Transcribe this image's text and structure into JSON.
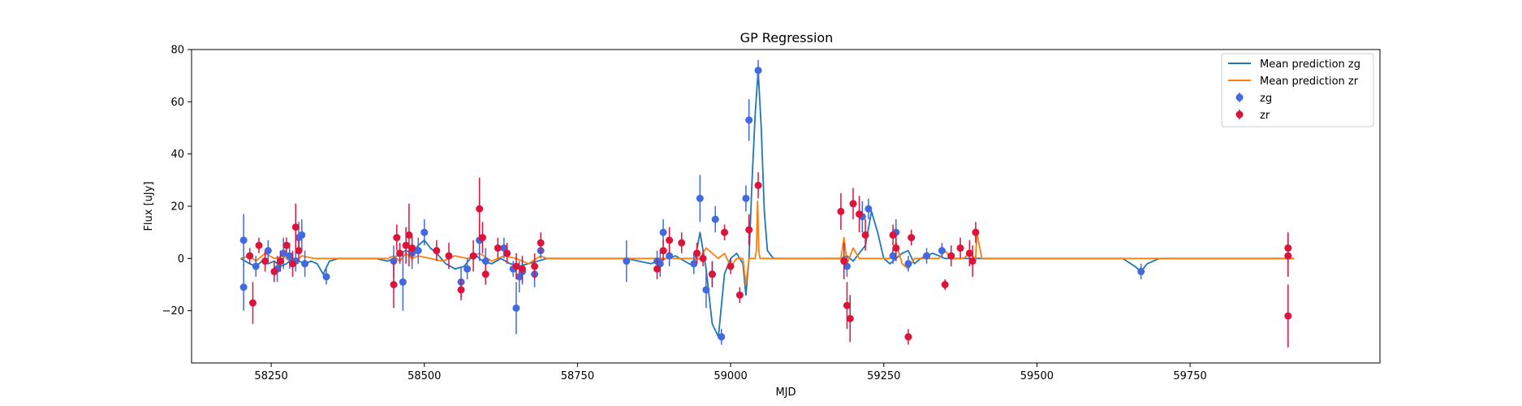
{
  "chart_data": {
    "type": "scatter",
    "title": "GP Regression",
    "xlabel": "MJD",
    "ylabel": "Flux [uJy]",
    "xlim": [
      58120,
      60060
    ],
    "ylim": [
      -40,
      80
    ],
    "xticks": [
      58250,
      58500,
      58750,
      59000,
      59250,
      59500,
      59750
    ],
    "yticks": [
      -20,
      0,
      20,
      40,
      60,
      80
    ],
    "grid": false,
    "legend_position": "top-right",
    "legend": [
      "Mean prediction zg",
      "Mean prediction zr",
      "zg",
      "zr"
    ],
    "colors": {
      "zg_line": "#1f77b4",
      "zr_line": "#ff7f0e",
      "zg_points": "#4169e1",
      "zr_points": "#dc143c"
    },
    "series": [
      {
        "name": "Mean prediction zg",
        "kind": "line",
        "x": [
          58200,
          58215,
          58225,
          58235,
          58245,
          58255,
          58265,
          58275,
          58285,
          58295,
          58305,
          58315,
          58325,
          58335,
          58345,
          58360,
          58380,
          58420,
          58440,
          58450,
          58460,
          58470,
          58480,
          58490,
          58500,
          58510,
          58520,
          58535,
          58550,
          58565,
          58575,
          58585,
          58595,
          58610,
          58625,
          58640,
          58655,
          58670,
          58685,
          58700,
          58720,
          58800,
          58830,
          58850,
          58870,
          58880,
          58895,
          58910,
          58925,
          58940,
          58950,
          58960,
          58970,
          58980,
          58990,
          59000,
          59010,
          59020,
          59025,
          59030,
          59035,
          59040,
          59045,
          59050,
          59055,
          59060,
          59070,
          59080,
          59100,
          59150,
          59180,
          59190,
          59200,
          59210,
          59220,
          59230,
          59240,
          59250,
          59260,
          59270,
          59280,
          59290,
          59300,
          59310,
          59320,
          59330,
          59340,
          59350,
          59360,
          59370,
          59380,
          59400,
          59500,
          59640,
          59660,
          59670,
          59680,
          59700,
          59800,
          59920
        ],
        "y": [
          0,
          -2,
          -3,
          -1,
          -2,
          -1,
          -3,
          -2,
          0,
          -1,
          -2,
          -1,
          -2,
          -6,
          -1,
          0,
          0,
          0,
          -1,
          0,
          2,
          3,
          2,
          5,
          7,
          4,
          2,
          -2,
          -4,
          -3,
          0,
          1,
          -1,
          -2,
          0,
          -2,
          -3,
          -2,
          -1,
          0,
          0,
          0,
          0,
          -1,
          -2,
          -1,
          0,
          1,
          -1,
          -3,
          10,
          -4,
          -25,
          -30,
          -6,
          0,
          2,
          -2,
          -14,
          0,
          30,
          55,
          72,
          50,
          18,
          3,
          0,
          0,
          0,
          0,
          0,
          1,
          -1,
          2,
          5,
          18,
          10,
          0,
          -2,
          0,
          2,
          3,
          -2,
          0,
          1,
          2,
          1,
          0,
          0,
          0,
          0,
          0,
          0,
          0,
          -3,
          -5,
          -2,
          0,
          0,
          0
        ]
      },
      {
        "name": "Mean prediction zr",
        "kind": "line",
        "x": [
          58200,
          58215,
          58225,
          58240,
          58255,
          58270,
          58285,
          58300,
          58320,
          58440,
          58450,
          58460,
          58470,
          58480,
          58490,
          58510,
          58530,
          58550,
          58570,
          58590,
          58610,
          58630,
          58650,
          58670,
          58690,
          58700,
          58720,
          58800,
          58900,
          58950,
          58960,
          58980,
          58990,
          59000,
          59010,
          59020,
          59025,
          59030,
          59040,
          59042,
          59044,
          59046,
          59048,
          59060,
          59150,
          59180,
          59185,
          59190,
          59200,
          59210,
          59220,
          59240,
          59260,
          59270,
          59280,
          59290,
          59300,
          59340,
          59350,
          59360,
          59380,
          59390,
          59400,
          59402,
          59410,
          59500,
          59920
        ],
        "y": [
          0,
          1,
          -1,
          2,
          0,
          1,
          -2,
          1,
          0,
          0,
          1,
          -1,
          2,
          0,
          1,
          0,
          -1,
          1,
          0,
          2,
          -1,
          1,
          0,
          -2,
          1,
          0,
          0,
          0,
          0,
          0,
          4,
          0,
          2,
          -3,
          0,
          0,
          -10,
          0,
          0,
          3,
          22,
          3,
          0,
          0,
          0,
          0,
          8,
          -2,
          4,
          0,
          0,
          0,
          0,
          6,
          -2,
          -4,
          0,
          0,
          3,
          0,
          0,
          2,
          0,
          10,
          0,
          0,
          0
        ]
      },
      {
        "name": "zg",
        "kind": "errorbar",
        "x": [
          58205,
          58205,
          58225,
          58245,
          58260,
          58270,
          58280,
          58290,
          58295,
          58300,
          58305,
          58340,
          58450,
          58465,
          58480,
          58490,
          58500,
          58560,
          58570,
          58590,
          58600,
          58630,
          58645,
          58650,
          58655,
          58660,
          58680,
          58690,
          58830,
          58880,
          58885,
          58890,
          58900,
          58940,
          58950,
          58960,
          58970,
          58975,
          58985,
          59025,
          59030,
          59045,
          59190,
          59215,
          59225,
          59265,
          59270,
          59290,
          59320,
          59345,
          59670
        ],
        "y": [
          7,
          -11,
          -3,
          3,
          -4,
          2,
          1,
          -1,
          8,
          9,
          -2,
          -7,
          -1,
          -9,
          2,
          3,
          10,
          -9,
          -4,
          7,
          -1,
          4,
          -4,
          -19,
          -7,
          -5,
          -6,
          3,
          -1,
          -1,
          -2,
          10,
          1,
          -2,
          23,
          -12,
          -6,
          15,
          -30,
          23,
          53,
          72,
          -3,
          16,
          19,
          1,
          10,
          -2,
          1,
          3,
          -5
        ],
        "err": [
          10,
          9,
          4,
          4,
          5,
          6,
          5,
          4,
          6,
          6,
          5,
          3,
          6,
          11,
          6,
          5,
          5,
          6,
          4,
          8,
          5,
          4,
          3,
          10,
          6,
          5,
          5,
          3,
          8,
          4,
          5,
          5,
          4,
          4,
          9,
          7,
          5,
          5,
          3,
          5,
          8,
          4,
          4,
          6,
          4,
          3,
          5,
          3,
          3,
          3,
          3
        ]
      },
      {
        "name": "zr",
        "kind": "errorbar",
        "x": [
          58215,
          58220,
          58230,
          58240,
          58255,
          58265,
          58275,
          58285,
          58290,
          58295,
          58450,
          58455,
          58460,
          58470,
          58475,
          58480,
          58520,
          58540,
          58560,
          58580,
          58590,
          58595,
          58600,
          58620,
          58635,
          58650,
          58660,
          58680,
          58690,
          58880,
          58890,
          58900,
          58920,
          58945,
          58955,
          58970,
          58990,
          59000,
          59015,
          59030,
          59045,
          59180,
          59185,
          59190,
          59195,
          59200,
          59210,
          59220,
          59265,
          59270,
          59290,
          59295,
          59350,
          59360,
          59375,
          59390,
          59395,
          59400,
          59910,
          59910,
          59910
        ],
        "y": [
          1,
          -17,
          5,
          -1,
          -5,
          -1,
          5,
          -2,
          12,
          3,
          -10,
          8,
          2,
          5,
          9,
          4,
          3,
          1,
          -12,
          1,
          19,
          8,
          -6,
          4,
          2,
          -3,
          -4,
          -3,
          6,
          -4,
          3,
          7,
          6,
          2,
          0,
          -6,
          10,
          -3,
          -14,
          11,
          28,
          18,
          -1,
          -18,
          -23,
          21,
          17,
          9,
          9,
          4,
          -30,
          8,
          -10,
          1,
          4,
          2,
          -1,
          10,
          4,
          1,
          -22
        ],
        "err": [
          3,
          8,
          3,
          4,
          4,
          4,
          3,
          5,
          9,
          4,
          9,
          5,
          4,
          7,
          12,
          5,
          4,
          5,
          4,
          6,
          12,
          6,
          4,
          4,
          4,
          5,
          5,
          5,
          4,
          4,
          4,
          5,
          4,
          4,
          3,
          5,
          3,
          3,
          3,
          6,
          5,
          7,
          7,
          9,
          9,
          6,
          7,
          6,
          4,
          5,
          3,
          3,
          2,
          4,
          4,
          5,
          6,
          4,
          6,
          8,
          12
        ]
      }
    ]
  }
}
